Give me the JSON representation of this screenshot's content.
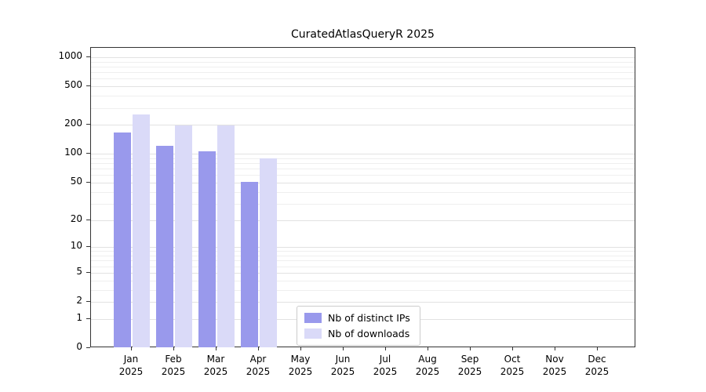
{
  "title": "CuratedAtlasQueryR 2025",
  "chart_data": {
    "type": "bar",
    "scale": "log10(1+x)",
    "title": "CuratedAtlasQueryR 2025",
    "year_label": "2025",
    "categories": [
      "Jan",
      "Feb",
      "Mar",
      "Apr",
      "May",
      "Jun",
      "Jul",
      "Aug",
      "Sep",
      "Oct",
      "Nov",
      "Dec"
    ],
    "series": [
      {
        "name": "Nb of distinct IPs",
        "color": "#9999ec",
        "values": [
          165,
          120,
          107,
          51,
          0,
          0,
          0,
          0,
          0,
          0,
          0,
          0
        ]
      },
      {
        "name": "Nb of downloads",
        "color": "#dadaf8",
        "values": [
          255,
          197,
          196,
          90,
          0,
          0,
          0,
          0,
          0,
          0,
          0,
          0
        ]
      }
    ],
    "y_ticks": [
      0,
      1,
      2,
      5,
      10,
      20,
      50,
      100,
      200,
      500,
      1000
    ],
    "ylim": [
      0,
      1000
    ],
    "grid": "horizontal, log minor gridlines",
    "legend_position": "bottom-center"
  }
}
